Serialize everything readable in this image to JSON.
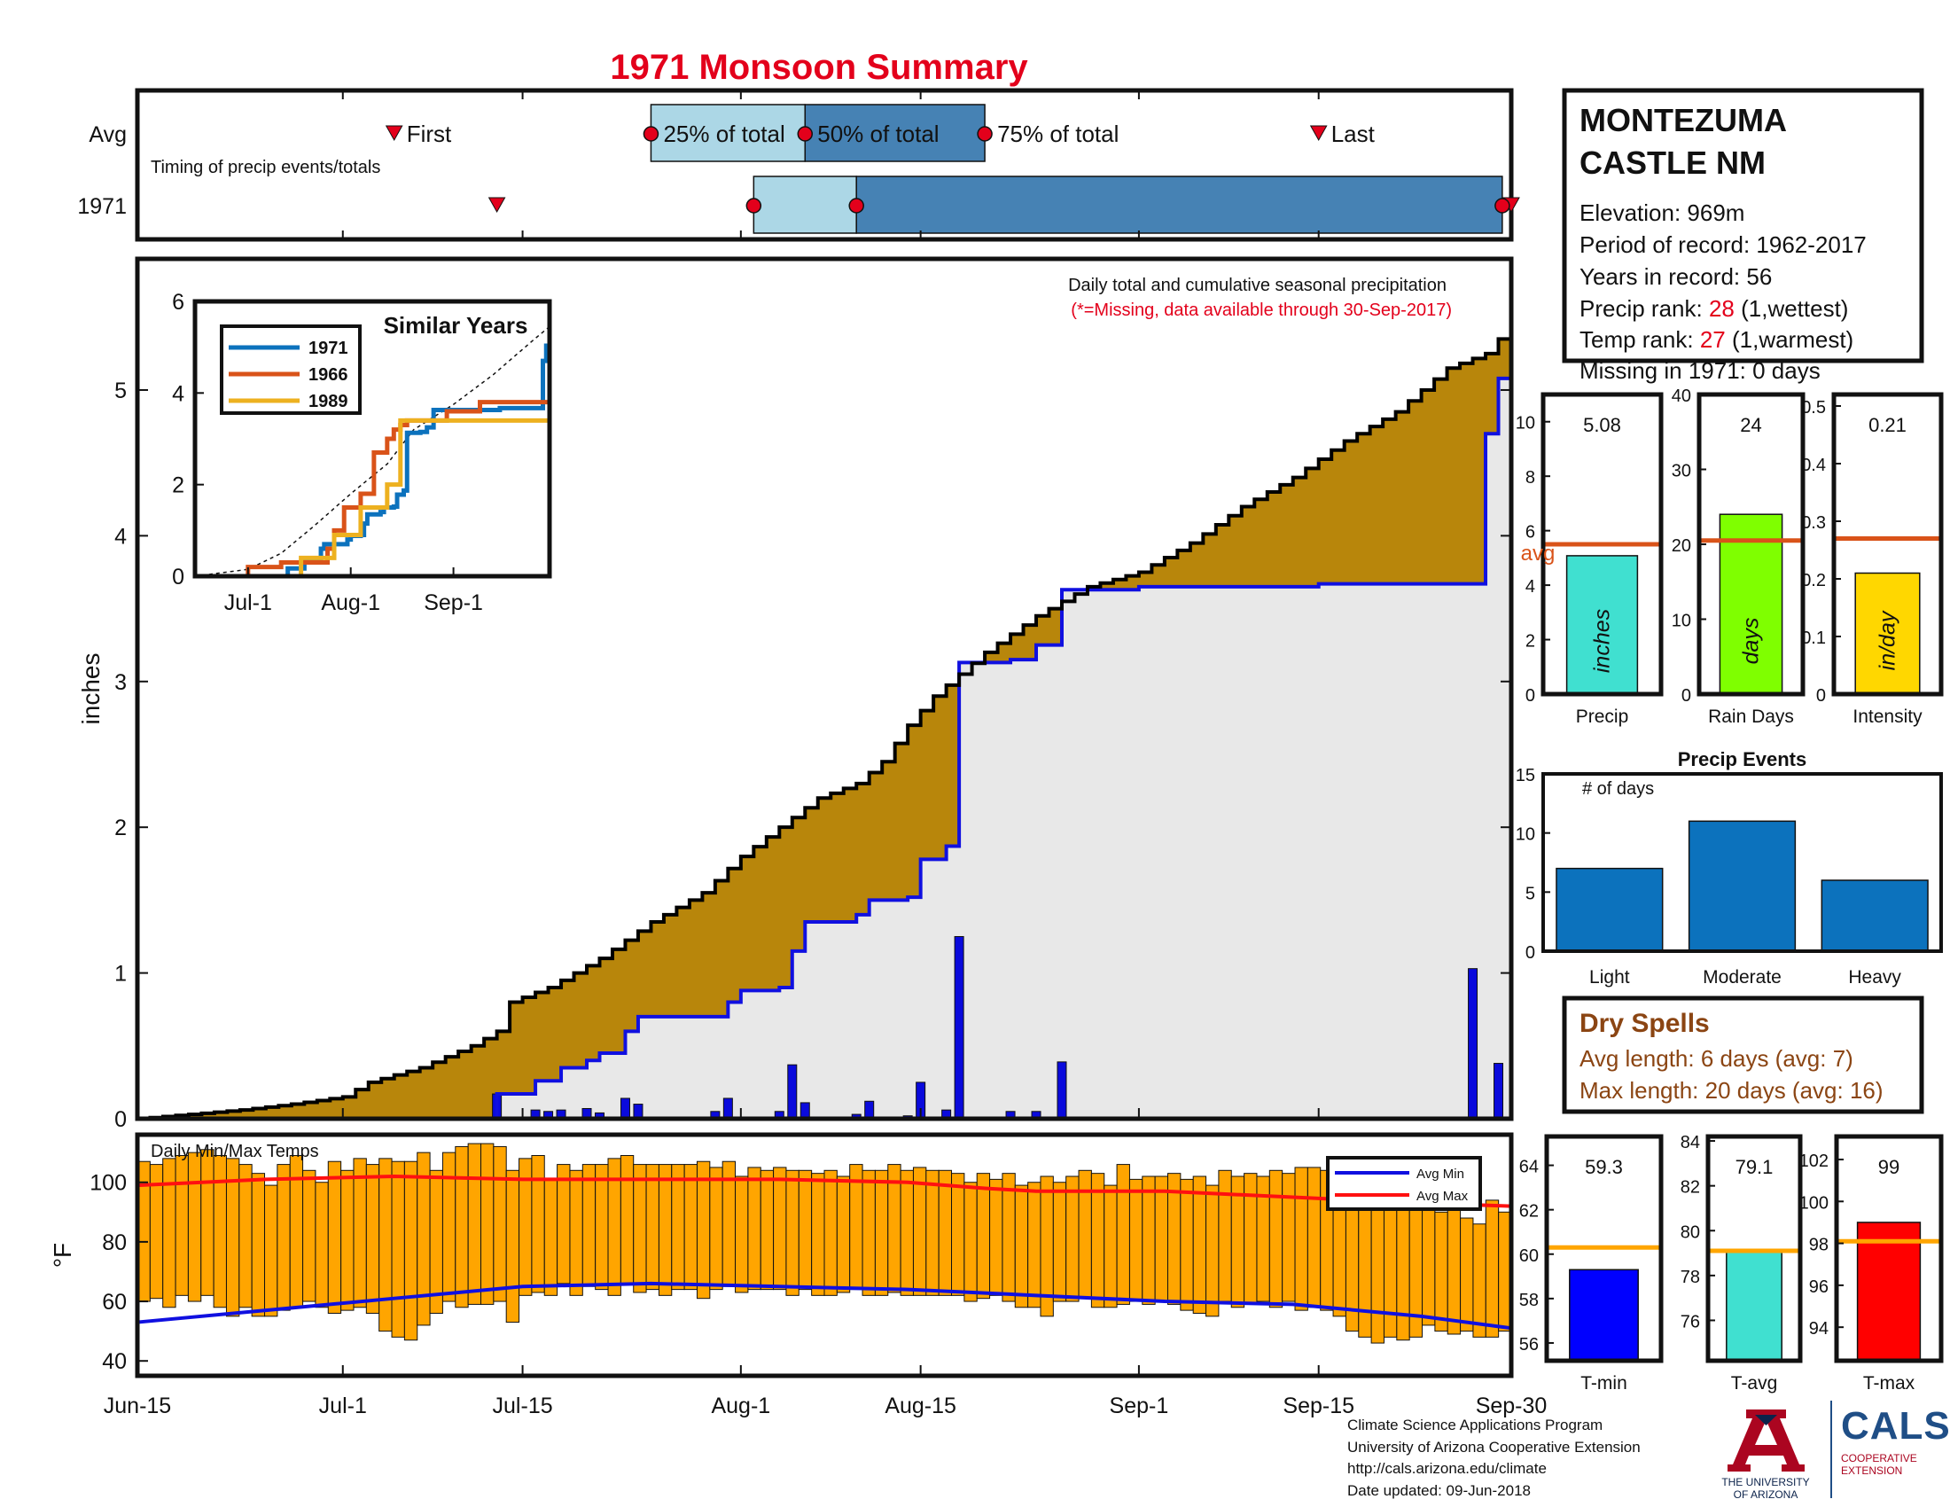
{
  "title": "1971 Monsoon Summary",
  "timing": {
    "rows": [
      "Avg",
      "1971"
    ],
    "caption": "Timing of precip events/totals",
    "labels": {
      "first": "First",
      "p25": "25% of total",
      "p50": "50% of total",
      "p75": "75% of total",
      "last": "Last"
    },
    "avg": {
      "first": 20,
      "p25": 40,
      "p50": 52,
      "p75": 66,
      "last": 92
    },
    "year": {
      "first": 28,
      "p25": 48,
      "p50": 56,
      "p75": 106.3,
      "last": 107
    }
  },
  "station": {
    "name_line1": "MONTEZUMA",
    "name_line2": "CASTLE NM",
    "elevation": "Elevation: 969m",
    "period": "Period of record: 1962-2017",
    "years": "Years in record: 56",
    "precip_rank_label": "Precip rank: ",
    "precip_rank_value": "28",
    "precip_rank_suffix": " (1,wettest)",
    "temp_rank_label": "Temp rank: ",
    "temp_rank_value": "27",
    "temp_rank_suffix": " (1,warmest)",
    "missing": "Missing in 1971: 0 days"
  },
  "chart_data": [
    {
      "id": "main-precip",
      "type": "area",
      "annotation": "Daily total and cumulative seasonal precipitation",
      "annotation2": "(*=Missing, data available through 30-Sep-2017)",
      "ylabel": "inches",
      "xlim": [
        0,
        107
      ],
      "ylim": [
        0,
        5.9
      ],
      "yticks": [
        0,
        1,
        2,
        3,
        4,
        5
      ],
      "xticks": [
        {
          "day": 0,
          "label": "Jun-15"
        },
        {
          "day": 16,
          "label": "Jul-1"
        },
        {
          "day": 30,
          "label": "Jul-15"
        },
        {
          "day": 47,
          "label": "Aug-1"
        },
        {
          "day": 61,
          "label": "Aug-15"
        },
        {
          "day": 78,
          "label": "Sep-1"
        },
        {
          "day": 92,
          "label": "Sep-15"
        },
        {
          "day": 107,
          "label": "Sep-30"
        }
      ],
      "avg_cumulative": [
        [
          0,
          0
        ],
        [
          4,
          0.03
        ],
        [
          8,
          0.06
        ],
        [
          12,
          0.1
        ],
        [
          16,
          0.15
        ],
        [
          18,
          0.25
        ],
        [
          22,
          0.35
        ],
        [
          26,
          0.5
        ],
        [
          28,
          0.6
        ],
        [
          29,
          0.8
        ],
        [
          32,
          0.9
        ],
        [
          36,
          1.1
        ],
        [
          40,
          1.35
        ],
        [
          44,
          1.55
        ],
        [
          47,
          1.8
        ],
        [
          50,
          2.0
        ],
        [
          53,
          2.2
        ],
        [
          56,
          2.3
        ],
        [
          58,
          2.45
        ],
        [
          60,
          2.7
        ],
        [
          62,
          2.9
        ],
        [
          64,
          3.05
        ],
        [
          66,
          3.2
        ],
        [
          70,
          3.45
        ],
        [
          74,
          3.65
        ],
        [
          78,
          3.75
        ],
        [
          82,
          3.95
        ],
        [
          86,
          4.2
        ],
        [
          90,
          4.4
        ],
        [
          94,
          4.65
        ],
        [
          98,
          4.85
        ],
        [
          102,
          5.15
        ],
        [
          105,
          5.25
        ],
        [
          107,
          5.45
        ]
      ],
      "year_cumulative": [
        [
          0,
          0
        ],
        [
          28,
          0
        ],
        [
          28,
          0.17
        ],
        [
          31,
          0.26
        ],
        [
          33,
          0.35
        ],
        [
          35,
          0.4
        ],
        [
          36,
          0.45
        ],
        [
          38,
          0.6
        ],
        [
          39,
          0.7
        ],
        [
          45,
          0.7
        ],
        [
          46,
          0.8
        ],
        [
          47,
          0.88
        ],
        [
          50,
          0.9
        ],
        [
          51,
          1.15
        ],
        [
          52,
          1.35
        ],
        [
          56,
          1.4
        ],
        [
          57,
          1.5
        ],
        [
          60,
          1.52
        ],
        [
          61,
          1.78
        ],
        [
          63,
          1.87
        ],
        [
          64,
          3.13
        ],
        [
          68,
          3.15
        ],
        [
          70,
          3.25
        ],
        [
          72,
          3.63
        ],
        [
          78,
          3.65
        ],
        [
          92,
          3.67
        ],
        [
          104,
          3.67
        ],
        [
          105,
          4.7
        ],
        [
          106,
          5.08
        ],
        [
          107,
          5.08
        ]
      ],
      "daily": [
        [
          28,
          0.17
        ],
        [
          31,
          0.06
        ],
        [
          32,
          0.05
        ],
        [
          33,
          0.06
        ],
        [
          35,
          0.07
        ],
        [
          36,
          0.04
        ],
        [
          38,
          0.14
        ],
        [
          39,
          0.1
        ],
        [
          45,
          0.05
        ],
        [
          46,
          0.14
        ],
        [
          50,
          0.05
        ],
        [
          51,
          0.37
        ],
        [
          52,
          0.11
        ],
        [
          56,
          0.03
        ],
        [
          57,
          0.12
        ],
        [
          60,
          0.02
        ],
        [
          61,
          0.25
        ],
        [
          63,
          0.06
        ],
        [
          64,
          1.25
        ],
        [
          68,
          0.05
        ],
        [
          70,
          0.05
        ],
        [
          72,
          0.39
        ],
        [
          104,
          1.03
        ],
        [
          106,
          0.38
        ]
      ],
      "colors": {
        "fill_above": "#b8860b",
        "fill_below": "#e8e8e8",
        "avg_line": "#000000",
        "year_line": "#1010e0",
        "bars": "#0a0adc"
      }
    },
    {
      "id": "similar-years",
      "type": "line",
      "title": "Similar Years",
      "xticks": [
        {
          "day": 16,
          "label": "Jul-1"
        },
        {
          "day": 47,
          "label": "Aug-1"
        },
        {
          "day": 78,
          "label": "Sep-1"
        }
      ],
      "xlim": [
        0,
        107
      ],
      "ylim": [
        0,
        6
      ],
      "yticks": [
        0,
        2,
        4,
        6
      ],
      "series": [
        {
          "name": "1971",
          "color": "#0c72bd",
          "values": [
            [
              0,
              0
            ],
            [
              28,
              0
            ],
            [
              28,
              0.17
            ],
            [
              33,
              0.35
            ],
            [
              38,
              0.6
            ],
            [
              39,
              0.7
            ],
            [
              45,
              0.7
            ],
            [
              46,
              0.8
            ],
            [
              47,
              0.88
            ],
            [
              50,
              0.9
            ],
            [
              51,
              1.15
            ],
            [
              52,
              1.35
            ],
            [
              56,
              1.4
            ],
            [
              57,
              1.5
            ],
            [
              60,
              1.52
            ],
            [
              61,
              1.78
            ],
            [
              63,
              1.87
            ],
            [
              64,
              3.13
            ],
            [
              68,
              3.15
            ],
            [
              70,
              3.25
            ],
            [
              72,
              3.63
            ],
            [
              92,
              3.67
            ],
            [
              104,
              3.67
            ],
            [
              105,
              4.7
            ],
            [
              106,
              5.08
            ]
          ]
        },
        {
          "name": "1966",
          "color": "#d95319",
          "values": [
            [
              0,
              0
            ],
            [
              16,
              0.2
            ],
            [
              26,
              0.3
            ],
            [
              40,
              0.6
            ],
            [
              42,
              1.0
            ],
            [
              44,
              1.0
            ],
            [
              45,
              1.5
            ],
            [
              49,
              1.5
            ],
            [
              50,
              1.8
            ],
            [
              52,
              1.8
            ],
            [
              54,
              2.7
            ],
            [
              56,
              2.7
            ],
            [
              58,
              3.0
            ],
            [
              60,
              3.2
            ],
            [
              62,
              3.3
            ],
            [
              64,
              3.4
            ],
            [
              68,
              3.4
            ],
            [
              76,
              3.6
            ],
            [
              86,
              3.8
            ],
            [
              104,
              3.8
            ],
            [
              107,
              3.9
            ]
          ]
        },
        {
          "name": "1989",
          "color": "#edb120",
          "values": [
            [
              0,
              0
            ],
            [
              28,
              0
            ],
            [
              32,
              0.4
            ],
            [
              40,
              0.4
            ],
            [
              42,
              0.9
            ],
            [
              48,
              0.9
            ],
            [
              50,
              1.5
            ],
            [
              56,
              1.5
            ],
            [
              58,
              2.0
            ],
            [
              60,
              2.0
            ],
            [
              62,
              3.4
            ],
            [
              107,
              3.4
            ]
          ]
        }
      ],
      "avg_cumulative": [
        [
          0,
          0
        ],
        [
          16,
          0.15
        ],
        [
          26,
          0.5
        ],
        [
          36,
          1.1
        ],
        [
          47,
          1.8
        ],
        [
          58,
          2.45
        ],
        [
          66,
          3.2
        ],
        [
          78,
          3.75
        ],
        [
          90,
          4.4
        ],
        [
          102,
          5.15
        ],
        [
          107,
          5.45
        ]
      ]
    },
    {
      "id": "summary-precip",
      "type": "bar",
      "title": "",
      "label": "Precip",
      "unit": "inches",
      "value": 5.08,
      "value_label": "5.08",
      "avg": 5.5,
      "avg_label": "avg",
      "ylim": [
        0,
        11
      ],
      "yticks": [
        0,
        2,
        4,
        6,
        8,
        10
      ],
      "color": "#40e0d0"
    },
    {
      "id": "summary-raindays",
      "type": "bar",
      "label": "Rain Days",
      "unit": "days",
      "value": 24,
      "value_label": "24",
      "avg": 20.5,
      "ylim": [
        0,
        40
      ],
      "yticks": [
        0,
        10,
        20,
        30,
        40
      ],
      "color": "#7fff00"
    },
    {
      "id": "summary-intensity",
      "type": "bar",
      "label": "Intensity",
      "unit": "in/day",
      "value": 0.21,
      "value_label": "0.21",
      "avg": 0.27,
      "ylim": [
        0,
        0.52
      ],
      "yticks": [
        0,
        0.1,
        0.2,
        0.3,
        0.4,
        0.5
      ],
      "color": "#ffd700"
    },
    {
      "id": "precip-events",
      "type": "bar",
      "title": "Precip Events",
      "ylabel_note": "# of days",
      "categories": [
        "Light",
        "Moderate",
        "Heavy"
      ],
      "values": [
        7,
        11,
        6
      ],
      "ylim": [
        0,
        15
      ],
      "yticks": [
        0,
        5,
        10,
        15
      ],
      "color": "#0c72bd"
    },
    {
      "id": "daily-temps",
      "type": "bar",
      "caption": "Daily Min/Max Temps",
      "ylabel": "°F",
      "ylim": [
        35,
        116
      ],
      "yticks": [
        40,
        60,
        80,
        100
      ],
      "legend": [
        "Avg Min",
        "Avg Max"
      ],
      "bar_color": "#ffa500",
      "min_color": "#1010e0",
      "max_color": "#ff1010",
      "avg_max": [
        [
          0,
          99
        ],
        [
          10,
          101
        ],
        [
          20,
          102
        ],
        [
          30,
          101
        ],
        [
          40,
          101
        ],
        [
          50,
          101
        ],
        [
          60,
          100
        ],
        [
          66,
          98
        ],
        [
          70,
          97
        ],
        [
          80,
          97
        ],
        [
          90,
          95
        ],
        [
          100,
          93
        ],
        [
          107,
          92
        ]
      ],
      "avg_min": [
        [
          0,
          53
        ],
        [
          10,
          57
        ],
        [
          20,
          61
        ],
        [
          30,
          65
        ],
        [
          40,
          66
        ],
        [
          50,
          65
        ],
        [
          60,
          64
        ],
        [
          70,
          62
        ],
        [
          80,
          60
        ],
        [
          90,
          59
        ],
        [
          100,
          55
        ],
        [
          107,
          51
        ]
      ],
      "tmax": [
        107,
        106,
        108,
        109,
        110,
        111,
        109,
        108,
        106,
        103,
        99,
        106,
        109,
        104,
        100,
        107,
        104,
        108,
        106,
        108,
        107,
        107,
        110,
        104,
        110,
        112,
        113,
        113,
        112,
        104,
        108,
        109,
        101,
        106,
        104,
        106,
        106,
        108,
        109,
        106,
        106,
        106,
        106,
        106,
        107,
        105,
        107,
        102,
        105,
        104,
        105,
        104,
        104,
        103,
        104,
        102,
        106,
        104,
        104,
        106,
        104,
        105,
        104,
        104,
        103,
        100,
        103,
        101,
        103,
        99,
        100,
        102,
        100,
        102,
        104,
        103,
        99,
        106,
        101,
        102,
        102,
        103,
        101,
        102,
        99,
        104,
        102,
        103,
        102,
        104,
        103,
        105,
        105,
        104,
        106,
        106,
        104,
        103,
        102,
        100,
        92,
        94,
        90,
        92,
        88,
        86,
        94,
        90
      ],
      "tmin": [
        60,
        61,
        58,
        62,
        60,
        62,
        58,
        55,
        58,
        55,
        55,
        57,
        58,
        60,
        58,
        56,
        57,
        58,
        56,
        50,
        48,
        47,
        52,
        56,
        60,
        58,
        59,
        59,
        60,
        53,
        62,
        63,
        62,
        66,
        62,
        65,
        64,
        62,
        66,
        63,
        64,
        62,
        64,
        64,
        61,
        64,
        65,
        63,
        64,
        64,
        64,
        62,
        64,
        62,
        62,
        63,
        64,
        62,
        62,
        63,
        62,
        62,
        62,
        62,
        62,
        60,
        61,
        62,
        60,
        58,
        58,
        55,
        60,
        60,
        61,
        58,
        58,
        59,
        60,
        59,
        60,
        59,
        57,
        56,
        55,
        60,
        58,
        59,
        60,
        58,
        60,
        57,
        58,
        57,
        55,
        50,
        48,
        46,
        48,
        47,
        48,
        52,
        50,
        49,
        50,
        48,
        48,
        50
      ]
    },
    {
      "id": "summary-tmin",
      "type": "bar",
      "label": "T-min",
      "value": 59.3,
      "value_label": "59.3",
      "avg": 60.3,
      "ylim": [
        55.2,
        65.3
      ],
      "yticks": [
        56,
        58,
        60,
        62,
        64
      ],
      "color": "#0000ff"
    },
    {
      "id": "summary-tavg",
      "type": "bar",
      "label": "T-avg",
      "value": 79.1,
      "value_label": "79.1",
      "avg": 79.1,
      "ylim": [
        74.2,
        84.2
      ],
      "yticks": [
        76,
        78,
        80,
        82,
        84
      ],
      "color": "#40e0d0"
    },
    {
      "id": "summary-tmax",
      "type": "bar",
      "label": "T-max",
      "value": 99,
      "value_label": "99",
      "avg": 98.1,
      "ylim": [
        92.4,
        103.1
      ],
      "yticks": [
        94,
        96,
        98,
        100,
        102
      ],
      "color": "#ff0000"
    }
  ],
  "dry_spells": {
    "title": "Dry Spells",
    "avg_length": "Avg length: 6 days (avg: 7)",
    "max_length": "Max length: 20 days (avg: 16)",
    "color": "#8b4513"
  },
  "footer": {
    "line1": "Climate Science Applications Program",
    "line2": "University of Arizona Cooperative Extension",
    "line3": "http://cals.arizona.edu/climate",
    "line4": " Date updated: 09-Jun-2018"
  },
  "logos": {
    "ua_line1": "THE UNIVERSITY",
    "ua_line2": "OF ARIZONA",
    "cals_name": "CALS",
    "cals_line1": "COOPERATIVE",
    "cals_line2": "EXTENSION",
    "ua_color": "#ab0520",
    "cals_color": "#1f4e86"
  }
}
